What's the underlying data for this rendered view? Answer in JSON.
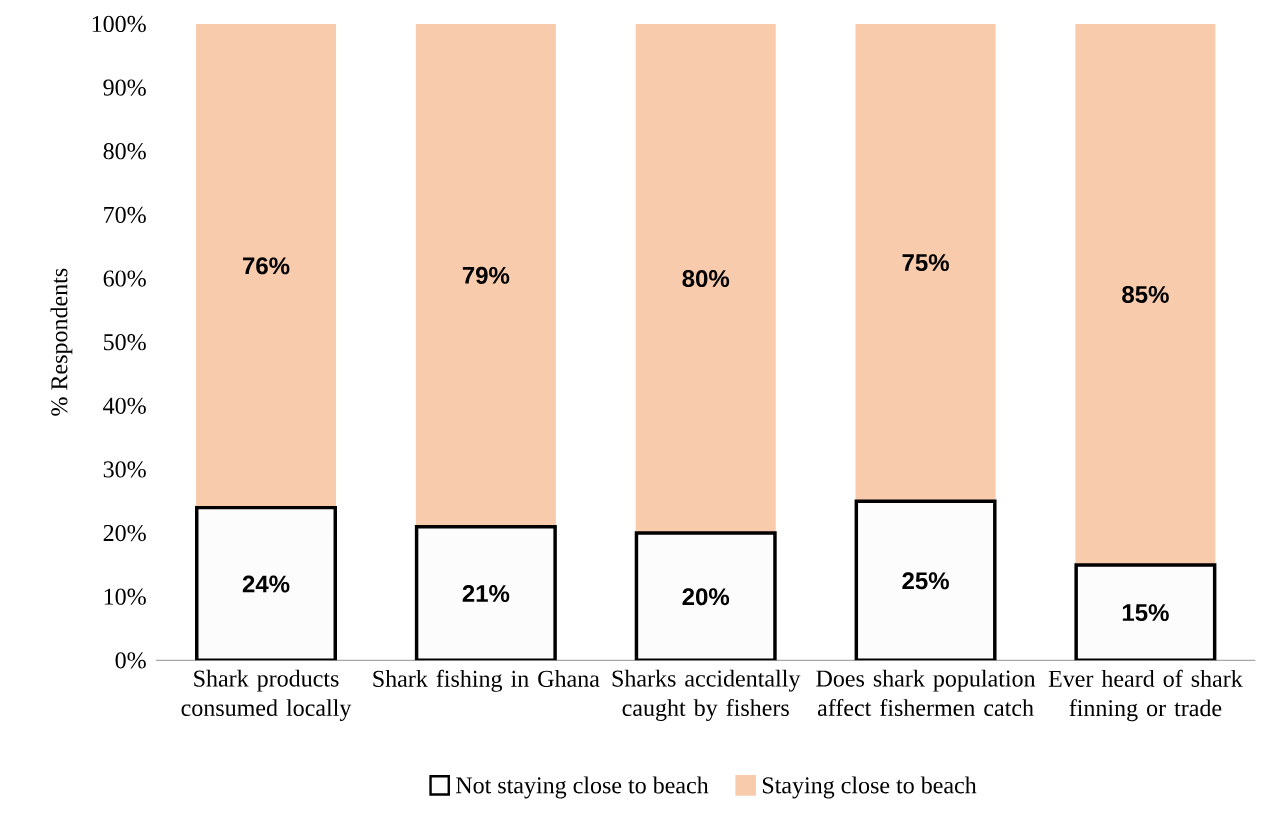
{
  "chart_data": {
    "type": "bar",
    "stacked": true,
    "ylabel": "% Respondents",
    "categories": [
      "Shark products consumed locally",
      "Shark fishing in Ghana",
      "Sharks accidentally caught by fishers",
      "Does shark population affect fishermen catch",
      "Ever heard of shark finning or trade"
    ],
    "series": [
      {
        "name": "Not staying close to beach",
        "color": "#fcfcfc",
        "values": [
          24,
          21,
          20,
          25,
          15
        ],
        "value_labels": [
          "24%",
          "21%",
          "20%",
          "25%",
          "15%"
        ]
      },
      {
        "name": "Staying close to beach",
        "color": "#f8cbad",
        "values": [
          76,
          79,
          80,
          75,
          85
        ],
        "value_labels": [
          "76%",
          "79%",
          "80%",
          "75%",
          "85%"
        ]
      }
    ],
    "ylim": [
      0,
      100
    ],
    "yticks": [
      {
        "value": 0,
        "label": "0%"
      },
      {
        "value": 10,
        "label": "10%"
      },
      {
        "value": 20,
        "label": "20%"
      },
      {
        "value": 30,
        "label": "30%"
      },
      {
        "value": 40,
        "label": "40%"
      },
      {
        "value": 50,
        "label": "50%"
      },
      {
        "value": 60,
        "label": "60%"
      },
      {
        "value": 70,
        "label": "70%"
      },
      {
        "value": 80,
        "label": "80%"
      },
      {
        "value": 90,
        "label": "90%"
      },
      {
        "value": 100,
        "label": "100%"
      }
    ],
    "legend": "bottom"
  }
}
